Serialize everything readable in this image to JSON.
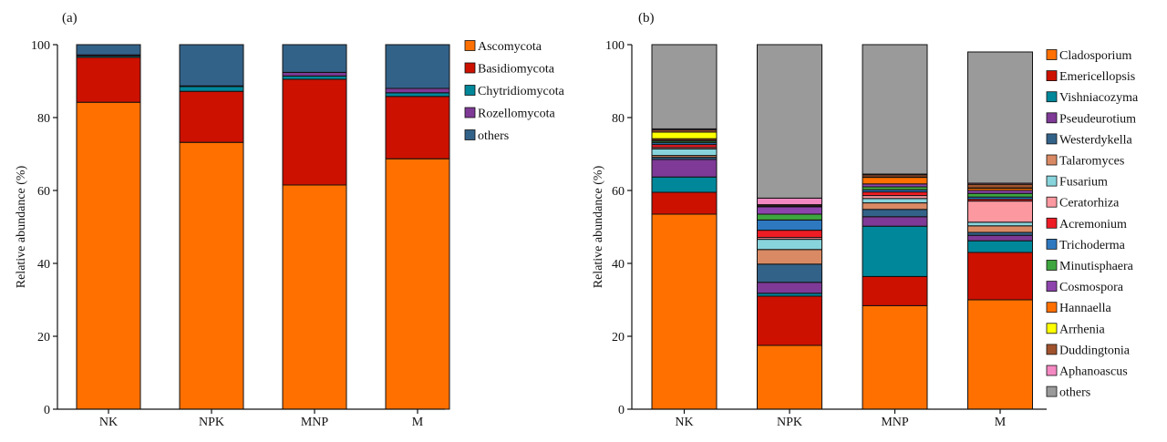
{
  "chart_data": [
    {
      "id": "a",
      "type": "bar",
      "stacked": true,
      "panel_label": "(a)",
      "ylabel": "Relative abundance (%)",
      "xlabel": "",
      "ylim": [
        0,
        100
      ],
      "yticks": [
        0,
        20,
        40,
        60,
        80,
        100
      ],
      "grid": false,
      "legend_position": "right",
      "categories": [
        "NK",
        "NPK",
        "MNP",
        "M"
      ],
      "series": [
        {
          "name": "Ascomycota",
          "color": "#ff7000",
          "values": [
            84.2,
            73.2,
            61.5,
            68.7
          ]
        },
        {
          "name": "Basidiomycota",
          "color": "#cc1100",
          "values": [
            12.3,
            14.0,
            29.0,
            17.1
          ]
        },
        {
          "name": "Chytridiomycota",
          "color": "#00879a",
          "values": [
            0.4,
            1.3,
            0.9,
            1.0
          ]
        },
        {
          "name": "Rozellomycota",
          "color": "#7e3a96",
          "values": [
            0.3,
            0.2,
            1.0,
            1.2
          ]
        },
        {
          "name": "others",
          "color": "#336289",
          "values": [
            2.8,
            11.3,
            7.6,
            12.0
          ]
        }
      ]
    },
    {
      "id": "b",
      "type": "bar",
      "stacked": true,
      "panel_label": "(b)",
      "ylabel": "Relative abundance (%)",
      "xlabel": "",
      "ylim": [
        0,
        100
      ],
      "yticks": [
        0,
        20,
        40,
        60,
        80,
        100
      ],
      "grid": false,
      "legend_position": "right",
      "categories": [
        "NK",
        "NPK",
        "MNP",
        "M"
      ],
      "series": [
        {
          "name": "Cladosporium",
          "color": "#ff7000",
          "values": [
            53.5,
            17.5,
            28.4,
            30.0
          ]
        },
        {
          "name": "Emericellopsis",
          "color": "#cc1100",
          "values": [
            6.0,
            13.5,
            8.0,
            13.0
          ]
        },
        {
          "name": "Vishniacozyma",
          "color": "#00879a",
          "values": [
            4.2,
            0.8,
            13.8,
            3.2
          ]
        },
        {
          "name": "Pseudeurotium",
          "color": "#7e3a96",
          "values": [
            4.8,
            3.0,
            2.6,
            1.5
          ]
        },
        {
          "name": "Westerdykella",
          "color": "#336289",
          "values": [
            0.6,
            5.0,
            2.0,
            0.8
          ]
        },
        {
          "name": "Talaromyces",
          "color": "#d98a64",
          "values": [
            0.5,
            4.0,
            1.8,
            1.8
          ]
        },
        {
          "name": "Fusarium",
          "color": "#88d4dc",
          "values": [
            1.8,
            2.8,
            1.2,
            1.0
          ]
        },
        {
          "name": "Ceratorhiza",
          "color": "#fb98a0",
          "values": [
            0.4,
            0.5,
            0.8,
            5.8
          ]
        },
        {
          "name": "Acremonium",
          "color": "#ee1c24",
          "values": [
            0.8,
            2.0,
            1.0,
            0.5
          ]
        },
        {
          "name": "Trichoderma",
          "color": "#2e78bf",
          "values": [
            0.5,
            2.8,
            0.6,
            0.6
          ]
        },
        {
          "name": "Minutisphaera",
          "color": "#3ea63e",
          "values": [
            0.4,
            1.6,
            0.8,
            1.0
          ]
        },
        {
          "name": "Cosmospora",
          "color": "#8e44ad",
          "values": [
            0.3,
            2.0,
            0.8,
            0.8
          ]
        },
        {
          "name": "Hannaella",
          "color": "#ff7000",
          "values": [
            0.4,
            0.2,
            1.8,
            0.6
          ]
        },
        {
          "name": "Arrhenia",
          "color": "#ffff00",
          "values": [
            1.8,
            0.1,
            0.1,
            0.1
          ]
        },
        {
          "name": "Duddingtonia",
          "color": "#a0522d",
          "values": [
            0.6,
            0.3,
            0.6,
            1.0
          ]
        },
        {
          "name": "Aphanoascus",
          "color": "#f488c2",
          "values": [
            0.3,
            1.8,
            0.2,
            0.3
          ]
        },
        {
          "name": "others",
          "color": "#9a9a9a",
          "values": [
            23.1,
            42.1,
            35.5,
            36.0
          ]
        }
      ]
    }
  ]
}
